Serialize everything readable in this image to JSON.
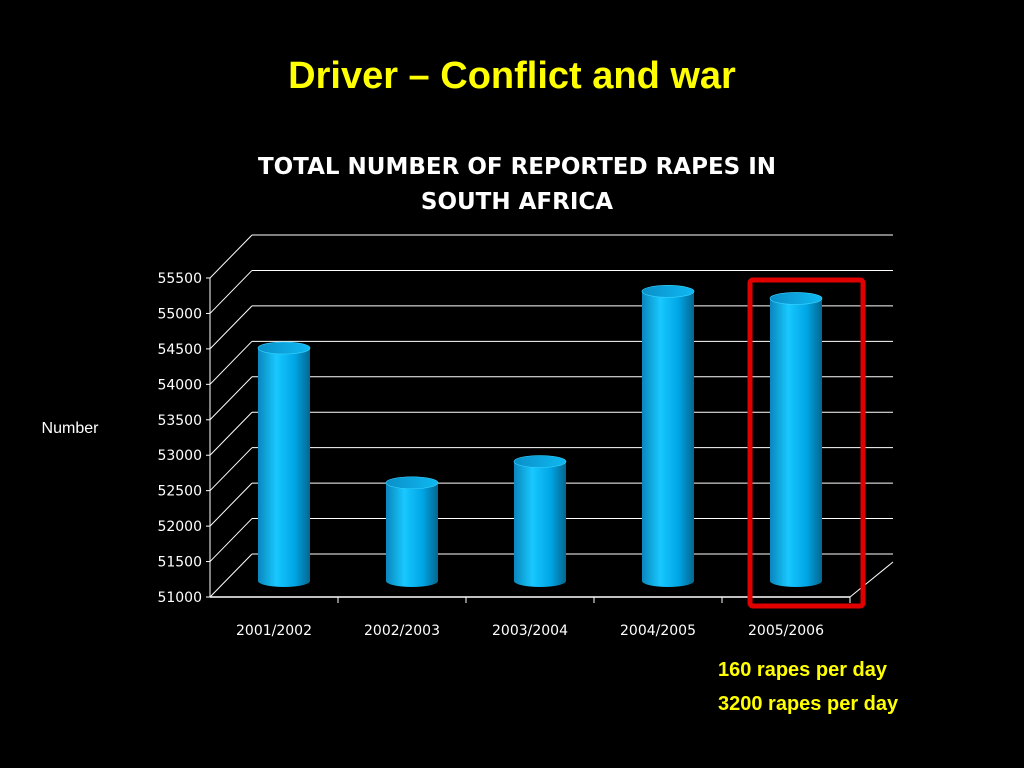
{
  "slide": {
    "title": "Driver – Conflict and war",
    "notes": [
      "160 rapes per day",
      "3200 rapes per day"
    ]
  },
  "chart_data": {
    "type": "bar",
    "title": "TOTAL NUMBER OF REPORTED RAPES IN SOUTH AFRICA",
    "xlabel": "",
    "ylabel": "Number",
    "categories": [
      "2001/2002",
      "2002/2003",
      "2003/2004",
      "2004/2005",
      "2005/2006"
    ],
    "series": [
      {
        "values": [
          54300,
          52400,
          52700,
          55100,
          55000
        ]
      }
    ],
    "ylim": [
      51000,
      55500
    ],
    "yticks": [
      "51000",
      "51500",
      "52000",
      "52500",
      "53000",
      "53500",
      "54000",
      "54500",
      "55000",
      "55500"
    ],
    "grid": true,
    "highlighted_category": "2005/2006",
    "colors": {
      "bar": "#00b0f0",
      "highlight_box": "#e00000",
      "grid": "#ffffff"
    }
  }
}
